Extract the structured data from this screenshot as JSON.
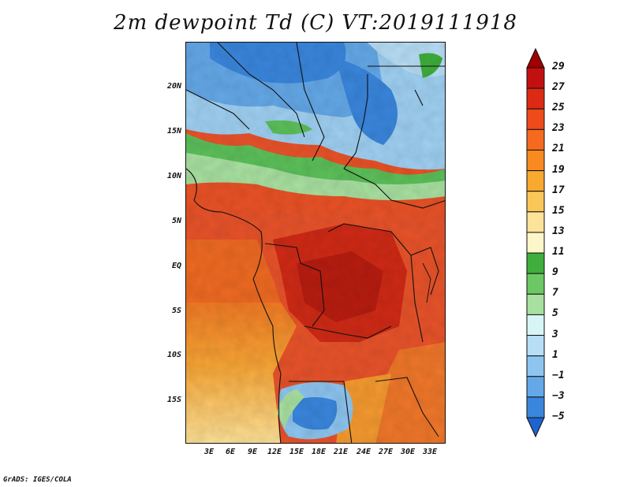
{
  "title": "2m dewpoint Td (C) VT:2019111918",
  "footer": "GrADS: IGES/COLA",
  "map": {
    "lat_ticks": [
      "20N",
      "15N",
      "10N",
      "5N",
      "EQ",
      "5S",
      "10S",
      "15S"
    ],
    "lon_ticks": [
      "3E",
      "6E",
      "9E",
      "12E",
      "15E",
      "18E",
      "21E",
      "24E",
      "27E",
      "30E",
      "33E"
    ]
  },
  "colorbar": {
    "labels": [
      "29",
      "27",
      "25",
      "23",
      "21",
      "19",
      "17",
      "15",
      "13",
      "11",
      "9",
      "7",
      "5",
      "3",
      "1",
      "−1",
      "−3",
      "−5"
    ],
    "colors": [
      "#a00000",
      "#c21010",
      "#dd2a14",
      "#ee4a1c",
      "#f56a1e",
      "#f88a20",
      "#f9a830",
      "#fbc658",
      "#fde39a",
      "#fdf6c8",
      "#3fae3c",
      "#6cc865",
      "#a8e0a0",
      "#d8f5f5",
      "#b7def6",
      "#8dc5f0",
      "#64a8e8",
      "#3a86dd",
      "#1f63cf"
    ]
  }
}
